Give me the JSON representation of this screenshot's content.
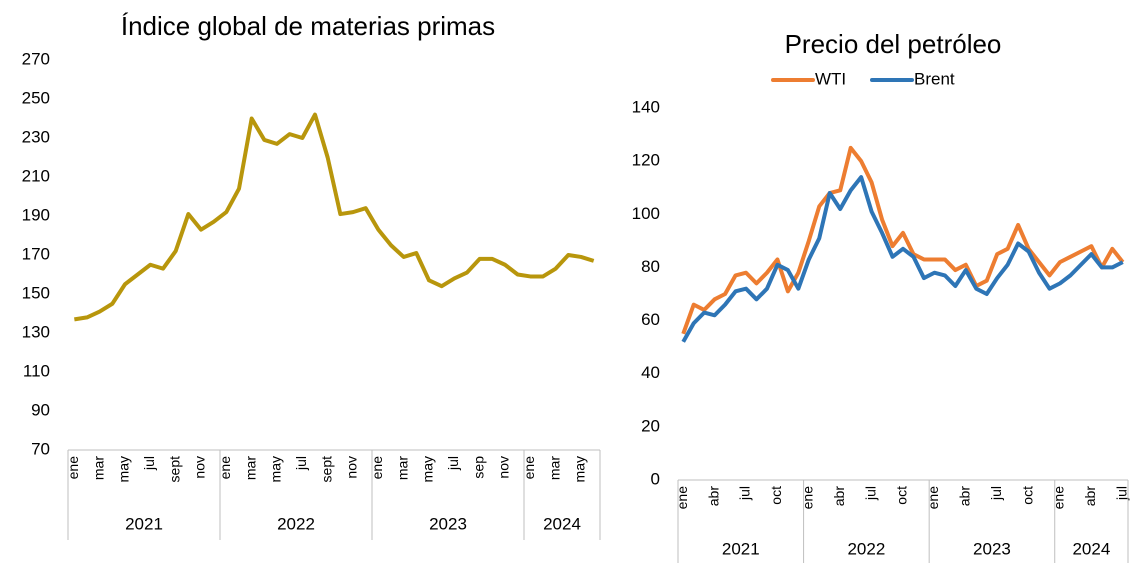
{
  "chart_data": [
    {
      "type": "line",
      "title": "Índice global de materias primas",
      "color": "#b8960c",
      "categories": [
        "ene",
        null,
        "mar",
        null,
        "may",
        null,
        "jul",
        null,
        "sept",
        null,
        "nov",
        null,
        "ene",
        null,
        "mar",
        null,
        "may",
        null,
        "jul",
        null,
        "sept",
        null,
        "nov",
        null,
        "ene",
        null,
        "mar",
        null,
        "may",
        null,
        "jul",
        null,
        "sep",
        null,
        "nov",
        null,
        "ene",
        null,
        "mar",
        null,
        "may",
        null
      ],
      "groups": [
        {
          "label": "2021",
          "size": 12
        },
        {
          "label": "2022",
          "size": 12
        },
        {
          "label": "2023",
          "size": 12
        },
        {
          "label": "2024",
          "size": 6
        }
      ],
      "values": [
        137,
        138,
        141,
        145,
        155,
        160,
        165,
        163,
        172,
        191,
        183,
        187,
        192,
        204,
        240,
        229,
        227,
        232,
        230,
        242,
        220,
        191,
        192,
        194,
        183,
        175,
        169,
        171,
        157,
        154,
        158,
        161,
        168,
        168,
        165,
        160,
        159,
        159,
        163,
        170,
        169,
        167
      ],
      "ylim": [
        70,
        270
      ],
      "yticks": [
        70,
        90,
        110,
        130,
        150,
        170,
        190,
        210,
        230,
        250,
        270
      ],
      "grid": false
    },
    {
      "type": "line",
      "title": "Precio del petróleo",
      "legend": "top",
      "categories": [
        "ene",
        null,
        null,
        "abr",
        null,
        null,
        "jul",
        null,
        null,
        "oct",
        null,
        null,
        "ene",
        null,
        null,
        "abr",
        null,
        null,
        "jul",
        null,
        null,
        "oct",
        null,
        null,
        "ene",
        null,
        null,
        "abr",
        null,
        null,
        "jul",
        null,
        null,
        "oct",
        null,
        null,
        "ene",
        null,
        null,
        "abr",
        null,
        null,
        "jul"
      ],
      "groups": [
        {
          "label": "2021",
          "size": 12
        },
        {
          "label": "2022",
          "size": 12
        },
        {
          "label": "2023",
          "size": 12
        },
        {
          "label": "2024",
          "size": 7
        }
      ],
      "series": [
        {
          "name": "WTI",
          "color": "#ed7d31",
          "values": [
            55,
            66,
            64,
            68,
            70,
            77,
            78,
            74,
            78,
            83,
            71,
            78,
            90,
            103,
            108,
            109,
            125,
            120,
            112,
            98,
            88,
            93,
            85,
            83,
            83,
            83,
            79,
            81,
            73,
            75,
            85,
            87,
            96,
            87,
            82,
            77,
            82,
            84,
            86,
            88,
            80,
            87,
            82
          ]
        },
        {
          "name": "Brent",
          "color": "#2e75b6",
          "values": [
            52,
            59,
            63,
            62,
            66,
            71,
            72,
            68,
            72,
            81,
            79,
            72,
            83,
            91,
            108,
            102,
            109,
            114,
            101,
            93,
            84,
            87,
            84,
            76,
            78,
            77,
            73,
            79,
            72,
            70,
            76,
            81,
            89,
            86,
            78,
            72,
            74,
            77,
            81,
            85,
            80,
            80,
            82
          ]
        }
      ],
      "ylim": [
        0,
        140
      ],
      "yticks": [
        0,
        20,
        40,
        60,
        80,
        100,
        120,
        140
      ],
      "grid": false
    }
  ]
}
